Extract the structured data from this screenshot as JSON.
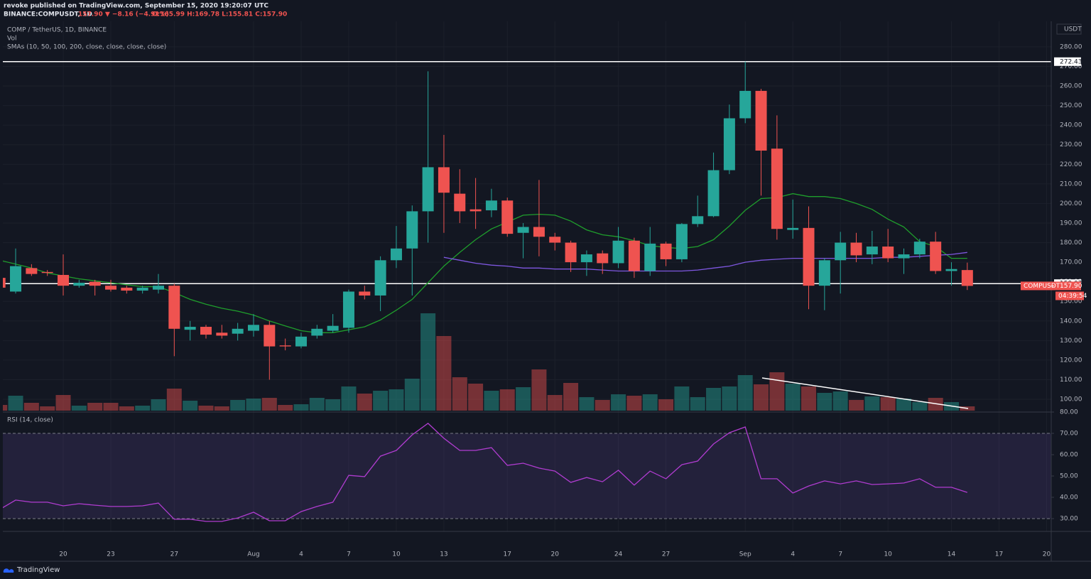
{
  "header": {
    "published": "revoke published on TradingView.com, September 15, 2020 19:20:07 UTC",
    "symbol": "BINANCE:COMPUSDT, 1D",
    "change": "157.90 ▼ −8.16 (−4.91%)",
    "ohlc": "O:165.99 H:169.78 L:155.81 C:157.90"
  },
  "footer": {
    "brand": "TradingView"
  },
  "chart_data": [
    {
      "type": "candlestick",
      "title": "COMP / TetherUS, 1D, BINANCE",
      "volume_label": "Vol",
      "sma_label": "SMAs (10, 50, 100, 200, close, close, close, close)",
      "categories": [
        null,
        null,
        null,
        null,
        "20",
        null,
        null,
        "23",
        null,
        null,
        null,
        "27",
        null,
        null,
        null,
        null,
        "Aug",
        null,
        null,
        "4",
        null,
        null,
        "7",
        null,
        null,
        "10",
        null,
        null,
        "13",
        null,
        null,
        null,
        "17",
        null,
        null,
        "20",
        null,
        null,
        null,
        "24",
        null,
        null,
        "27",
        null,
        null,
        null,
        null,
        "Sep",
        null,
        null,
        "4",
        null,
        null,
        "7",
        null,
        null,
        "10",
        null,
        null,
        null,
        "14",
        null,
        null,
        "17",
        null,
        null,
        "20"
      ],
      "open": [
        162,
        155,
        167,
        165,
        163.5,
        158,
        160,
        158,
        157,
        155.5,
        156,
        158,
        135.5,
        137,
        134,
        133.5,
        135,
        138,
        127.5,
        127,
        132.5,
        135,
        136.5,
        155,
        153,
        171,
        177,
        196,
        218.5,
        205,
        197,
        196.5,
        201.5,
        185,
        188,
        183,
        180,
        170,
        174.5,
        169.5,
        181,
        165.5,
        179.5,
        171.5,
        189.5,
        193.5,
        217,
        243.5,
        257.5,
        228,
        186.5,
        187.5,
        158,
        171,
        180,
        174,
        178,
        172,
        174,
        180.5,
        165.5,
        165.99,
        null,
        null,
        null,
        null,
        null
      ],
      "high": [
        163,
        177,
        169,
        166,
        174,
        161,
        161,
        161,
        158,
        158,
        164,
        159,
        140,
        138,
        138,
        139,
        143.5,
        140,
        131,
        134,
        138,
        143.5,
        156,
        158,
        173,
        188.5,
        199,
        267.5,
        235,
        217.5,
        213,
        207.5,
        203,
        190,
        212,
        185,
        181,
        176,
        176,
        188,
        182.5,
        188,
        180.5,
        190,
        204,
        226,
        250.5,
        272.5,
        258.5,
        245,
        202,
        198.5,
        172,
        185.5,
        185,
        186,
        187,
        177,
        182,
        185.5,
        170,
        169.78,
        null,
        null,
        null,
        null,
        null
      ],
      "low": [
        156,
        154,
        163,
        163,
        153,
        157,
        153,
        155,
        154,
        154,
        154,
        122,
        130,
        131,
        131,
        130,
        132,
        110,
        125,
        126,
        131,
        134,
        134,
        151,
        145,
        167,
        153,
        180,
        185,
        190,
        187,
        193,
        183,
        172,
        173,
        176,
        165,
        163,
        164,
        167,
        162,
        163,
        168,
        170,
        188,
        193,
        215,
        241,
        204,
        181.5,
        182,
        146,
        145.5,
        154,
        170,
        169,
        170,
        164,
        172,
        164,
        158,
        155.81,
        null,
        null,
        null,
        null,
        null
      ],
      "close": [
        157,
        168,
        164,
        164.5,
        158,
        159.5,
        158,
        156,
        155.5,
        157,
        158,
        136,
        137,
        133,
        132.5,
        136,
        138,
        127,
        127,
        132,
        136,
        137.5,
        155,
        153,
        171,
        177,
        196,
        218.5,
        205.5,
        196,
        196,
        201.5,
        184.5,
        188,
        183,
        180,
        170,
        174,
        169.5,
        181,
        165.5,
        179.5,
        171.5,
        189.5,
        193.5,
        217,
        243.5,
        257.5,
        227,
        187,
        187.5,
        158,
        171,
        180,
        173.5,
        178,
        172,
        174,
        180.5,
        165.5,
        166.5,
        157.9,
        null,
        null,
        null,
        null,
        null
      ],
      "volume": [
        8,
        21,
        11,
        6,
        22,
        7,
        11,
        11,
        6,
        7,
        16,
        31,
        14,
        7,
        6,
        15,
        17,
        18,
        8,
        9,
        18,
        16,
        34,
        24,
        28,
        30,
        45,
        137,
        105,
        47,
        38,
        28,
        30,
        33,
        58,
        22,
        39,
        19,
        15,
        23,
        21,
        23,
        16,
        34,
        19,
        32,
        34,
        50,
        37,
        54,
        38,
        34,
        25,
        27,
        15,
        20,
        19,
        17,
        12,
        18,
        12,
        6,
        null,
        null,
        null,
        null,
        null
      ],
      "lines": [
        {
          "color": "#1f9e2c",
          "values": [
            171,
            169,
            167,
            164.5,
            163,
            161.5,
            160.5,
            159.5,
            158.5,
            157.5,
            157.5,
            154.5,
            151,
            148.5,
            146.5,
            145,
            143,
            140,
            137.5,
            135,
            134,
            134,
            135.5,
            137,
            140.5,
            145.5,
            151,
            159.5,
            168,
            175,
            181.5,
            187,
            190.5,
            194,
            194.5,
            194,
            191,
            186.5,
            184,
            183,
            181,
            178.5,
            177.5,
            177,
            178,
            181.5,
            188.5,
            196.5,
            202.5,
            203,
            205,
            203.5,
            203.5,
            202.5,
            200,
            197,
            192,
            188,
            180.5,
            178,
            172,
            172,
            null,
            null,
            null,
            null,
            null
          ]
        },
        {
          "color": "#7e57e0",
          "values": [
            null,
            null,
            null,
            null,
            null,
            null,
            null,
            null,
            null,
            null,
            null,
            null,
            null,
            null,
            null,
            null,
            null,
            null,
            null,
            null,
            null,
            null,
            null,
            null,
            null,
            null,
            null,
            null,
            172.5,
            171,
            169.5,
            168.5,
            168,
            167,
            167,
            166.5,
            166.5,
            166.5,
            166,
            165.5,
            165.5,
            165.5,
            165.5,
            165.5,
            166,
            167,
            168,
            170,
            171,
            171.5,
            172,
            172,
            172,
            172,
            172,
            172,
            172.5,
            172.5,
            173,
            173.5,
            174,
            175,
            null,
            null,
            null,
            null,
            null
          ]
        }
      ],
      "up_color": "#26a69a",
      "down_color": "#ef5350",
      "ylim": [
        94.2,
        292.3
      ],
      "yticks": [
        {
          "value": 100,
          "label": "100.00"
        },
        {
          "value": 110,
          "label": "110.00"
        },
        {
          "value": 120,
          "label": "120.00"
        },
        {
          "value": 130,
          "label": "130.00"
        },
        {
          "value": 140,
          "label": "140.00"
        },
        {
          "value": 150,
          "label": "150.00"
        },
        {
          "value": 160,
          "label": "160.00"
        },
        {
          "value": 170,
          "label": "170.00"
        },
        {
          "value": 180,
          "label": "180.00"
        },
        {
          "value": 190,
          "label": "190.00"
        },
        {
          "value": 200,
          "label": "200.00"
        },
        {
          "value": 210,
          "label": "210.00"
        },
        {
          "value": 220,
          "label": "220.00"
        },
        {
          "value": 230,
          "label": "230.00"
        },
        {
          "value": 240,
          "label": "240.00"
        },
        {
          "value": 250,
          "label": "250.00"
        },
        {
          "value": 260,
          "label": "260.00"
        },
        {
          "value": 270,
          "label": "270.00"
        },
        {
          "value": 280,
          "label": "280.00"
        }
      ],
      "y_unit": "USDT",
      "grid": true,
      "levels": [
        272.43,
        159.07
      ],
      "last_price": {
        "symbol": "COMPUSDT",
        "price": {
          "value": 157.9,
          "label": "157.90"
        },
        "countdown": "04:39:54"
      }
    },
    {
      "type": "line",
      "title": "RSI (14, close)",
      "color": "#b03cd0",
      "values": [
        34.3,
        38.7,
        37.7,
        37.7,
        36,
        37,
        36.3,
        35.7,
        35.7,
        36,
        37.3,
        29.7,
        29.7,
        28.7,
        28.7,
        30.3,
        33,
        29,
        29,
        33.3,
        35.7,
        37.7,
        50.3,
        49.7,
        59.3,
        62,
        69.3,
        74.7,
        67.7,
        62,
        62,
        63.3,
        55,
        56,
        53.7,
        52.3,
        47,
        49.3,
        47.3,
        52.7,
        45.7,
        52.3,
        48.7,
        55.3,
        57,
        65,
        70.3,
        73,
        48.7,
        48.7,
        42,
        45.3,
        47.7,
        46.3,
        47.7,
        46,
        46.3,
        46.7,
        48.7,
        44.7,
        44.7,
        42.3,
        null,
        null,
        null,
        null,
        null
      ],
      "ylim": [
        24,
        80
      ],
      "yticks": [
        {
          "value": 30,
          "label": "30.00"
        },
        {
          "value": 40,
          "label": "40.00"
        },
        {
          "value": 50,
          "label": "50.00"
        },
        {
          "value": 60,
          "label": "60.00"
        },
        {
          "value": 70,
          "label": "70.00"
        },
        {
          "value": 80,
          "label": "80.00"
        }
      ],
      "bands": [
        30,
        70
      ]
    }
  ]
}
